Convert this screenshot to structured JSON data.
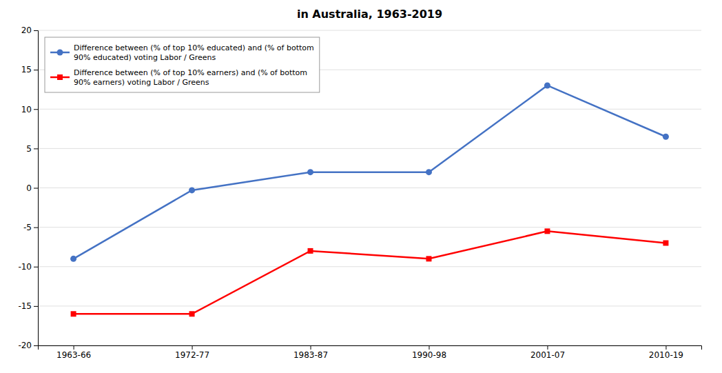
{
  "chart_data": {
    "type": "line",
    "title": "in Australia, 1963-2019",
    "categories": [
      "1963-66",
      "1972-77",
      "1983-87",
      "1990-98",
      "2001-07",
      "2010-19"
    ],
    "series": [
      {
        "name": "Difference between (% of top 10% educated) and (% of bottom\n90% educated) voting Labor / Greens",
        "color": "#4472C4",
        "marker": "circle",
        "line_style": "solid",
        "values": [
          -9,
          -0.3,
          2,
          2,
          13,
          6.5
        ]
      },
      {
        "name": "Difference between (% of top 10% earners) and (% of bottom\n90% earners) voting Labor / Greens",
        "color": "#FF0000",
        "marker": "square",
        "line_style": "solid",
        "values": [
          -16,
          -16,
          -8,
          -9,
          -5.5,
          -7
        ]
      }
    ],
    "ylim": [
      -20,
      20
    ],
    "yticks": [
      20,
      15,
      10,
      5,
      0,
      -5,
      -10,
      -15,
      -20
    ],
    "grid": true,
    "legend": "upper left"
  }
}
